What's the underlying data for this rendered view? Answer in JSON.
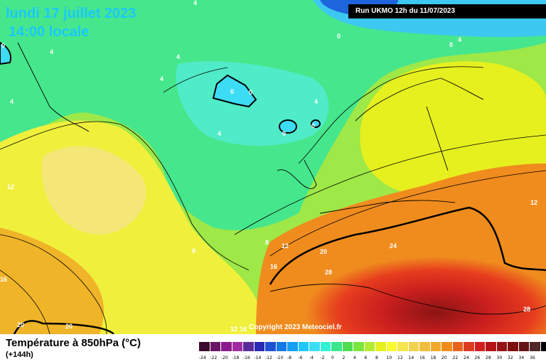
{
  "header": {
    "date": "lundi 17 juillet 2023",
    "time": "14:00 locale",
    "run": "Run UKMO 12h du 11/07/2023"
  },
  "copyright": "Copyright 2023 Meteociel.fr",
  "footer": {
    "parameter": "Température à 850hPa (°C)",
    "lead_time": "(+144h)"
  },
  "isotherm_labels": [
    "4",
    "4",
    "4",
    "4",
    "4",
    "4",
    "4",
    "4",
    "0",
    "0",
    "0",
    "0",
    "0",
    "0",
    "0",
    "12",
    "12",
    "12",
    "8",
    "8",
    "12",
    "16",
    "20",
    "24",
    "28",
    "28",
    "20",
    "20",
    "16",
    "12",
    "16"
  ],
  "legend": {
    "colors": [
      "#3b0a2e",
      "#6a1466",
      "#8c1a8c",
      "#a02aa0",
      "#5a2a9a",
      "#2a2ab4",
      "#1e50d2",
      "#1478e6",
      "#14a0f0",
      "#1ec8ff",
      "#3cdcf5",
      "#32f0d2",
      "#3ce68c",
      "#50dc50",
      "#78e63c",
      "#b4eb32",
      "#e6f01e",
      "#fafa32",
      "#f5e650",
      "#f0d250",
      "#f0be3c",
      "#f0aa28",
      "#f08c1e",
      "#e6641e",
      "#dc3c1e",
      "#d21e1e",
      "#b41414",
      "#961414",
      "#7d0f0f",
      "#641414",
      "#502828",
      "#000000"
    ],
    "labels": [
      "-24",
      "-22",
      "-20",
      "-18",
      "-16",
      "-14",
      "-12",
      "-10",
      "-8",
      "-6",
      "-4",
      "-2",
      "0",
      "2",
      "4",
      "6",
      "8",
      "10",
      "12",
      "14",
      "16",
      "18",
      "20",
      "22",
      "24",
      "26",
      "28",
      "30",
      "32",
      "34",
      "36"
    ]
  },
  "colors": {
    "accent_title": "#19c8ff",
    "warm_core": "#d21e1e",
    "ocean_mid": "#5ae678"
  }
}
